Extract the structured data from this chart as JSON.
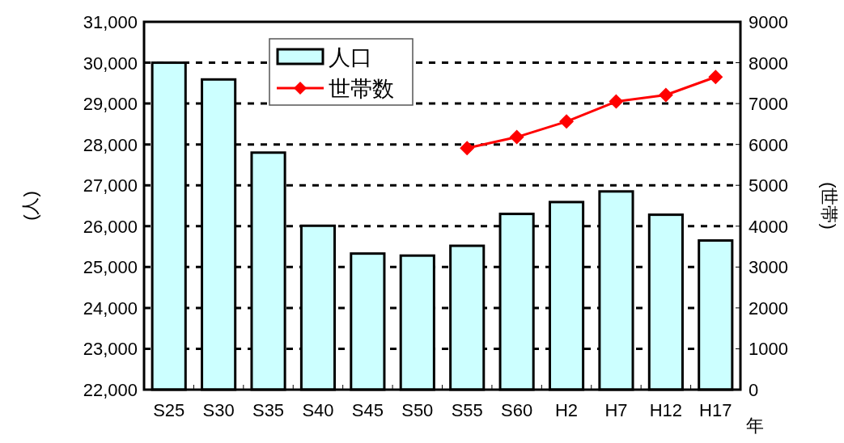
{
  "chart_data": {
    "type": "bar",
    "categories": [
      "S25",
      "S30",
      "S35",
      "S40",
      "S45",
      "S50",
      "S55",
      "S60",
      "H2",
      "H7",
      "H12",
      "H17"
    ],
    "series": [
      {
        "name": "人口",
        "color": "#ccffff",
        "values": [
          30000,
          29590,
          27800,
          26010,
          25330,
          25280,
          25520,
          26300,
          26590,
          26850,
          26280,
          25650
        ]
      },
      {
        "name": "世帯数",
        "type": "line",
        "axis": "y2",
        "color": "#ff0000",
        "marker": "diamond",
        "values": [
          null,
          null,
          null,
          null,
          null,
          null,
          5910,
          6180,
          6560,
          7050,
          7210,
          7650
        ]
      }
    ],
    "xlabel": "年",
    "ylabel": "(人)",
    "y2label": "(世帯)",
    "ylim": [
      22000,
      31000
    ],
    "yticks": [
      {
        "value": 22000,
        "label": "22,000"
      },
      {
        "value": 23000,
        "label": "23,000"
      },
      {
        "value": 24000,
        "label": "24,000"
      },
      {
        "value": 25000,
        "label": "25,000"
      },
      {
        "value": 26000,
        "label": "26,000"
      },
      {
        "value": 27000,
        "label": "27,000"
      },
      {
        "value": 28000,
        "label": "28,000"
      },
      {
        "value": 29000,
        "label": "29,000"
      },
      {
        "value": 30000,
        "label": "30,000"
      },
      {
        "value": 31000,
        "label": "31,000"
      }
    ],
    "y2lim": [
      0,
      9000
    ],
    "y2ticks": [
      0,
      1000,
      2000,
      3000,
      4000,
      5000,
      6000,
      7000,
      8000,
      9000
    ],
    "grid": "y",
    "legend": "top"
  }
}
